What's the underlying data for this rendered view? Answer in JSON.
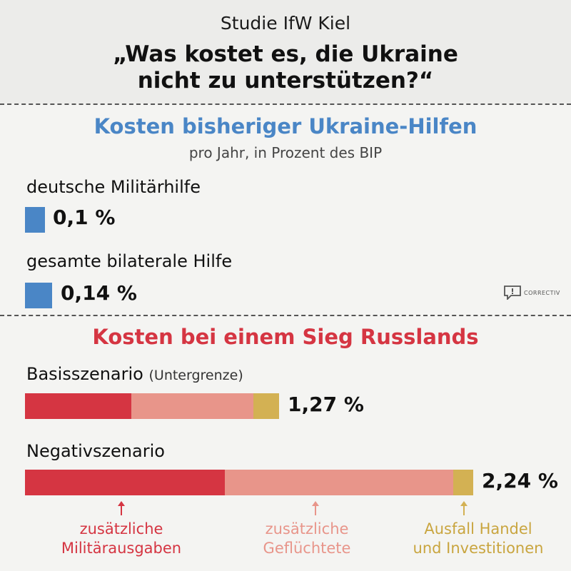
{
  "header": {
    "kicker": "Studie IfW Kiel",
    "headline_line1": "„Was kostet es, die Ukraine",
    "headline_line2": "nicht zu unterstützen?“"
  },
  "section1": {
    "title": "Kosten bisheriger Ukraine-Hilfen",
    "subtitle": "pro Jahr, in Prozent des BIP",
    "items": [
      {
        "label": "deutsche Militärhilfe",
        "value": 0.1,
        "value_text": "0,1 %"
      },
      {
        "label": "gesamte bilaterale Hilfe",
        "value": 0.14,
        "value_text": "0,14 %"
      }
    ]
  },
  "logo": {
    "text": "CORRECTIV"
  },
  "section2": {
    "title": "Kosten bei einem Sieg Russlands",
    "scenarios": [
      {
        "label": "Basisszenario",
        "note": "(Untergrenze)",
        "value_text": "1,27 %"
      },
      {
        "label": "Negativszenario",
        "note": "",
        "value_text": "2,24 %"
      }
    ],
    "legend": [
      {
        "line1": "zusätzliche",
        "line2": "Militärausgaben"
      },
      {
        "line1": "zusätzliche",
        "line2": "Geflüchtete"
      },
      {
        "line1": "Ausfall Handel",
        "line2": "und Investitionen"
      }
    ]
  },
  "colors": {
    "blue": "#4a86c6",
    "military": "#d53542",
    "refugees": "#e8958a",
    "trade": "#d3b153"
  },
  "chart_data": {
    "type": "bar",
    "stacked": true,
    "unit": "% des BIP",
    "categories": [
      "Basisszenario",
      "Negativszenario"
    ],
    "series": [
      {
        "name": "zusätzliche Militärausgaben",
        "values": [
          0.53,
          1.0
        ]
      },
      {
        "name": "zusätzliche Geflüchtete",
        "values": [
          0.61,
          1.14
        ]
      },
      {
        "name": "Ausfall Handel und Investitionen",
        "values": [
          0.13,
          0.1
        ]
      }
    ],
    "totals": [
      1.27,
      2.24
    ],
    "max_value": 2.24
  }
}
